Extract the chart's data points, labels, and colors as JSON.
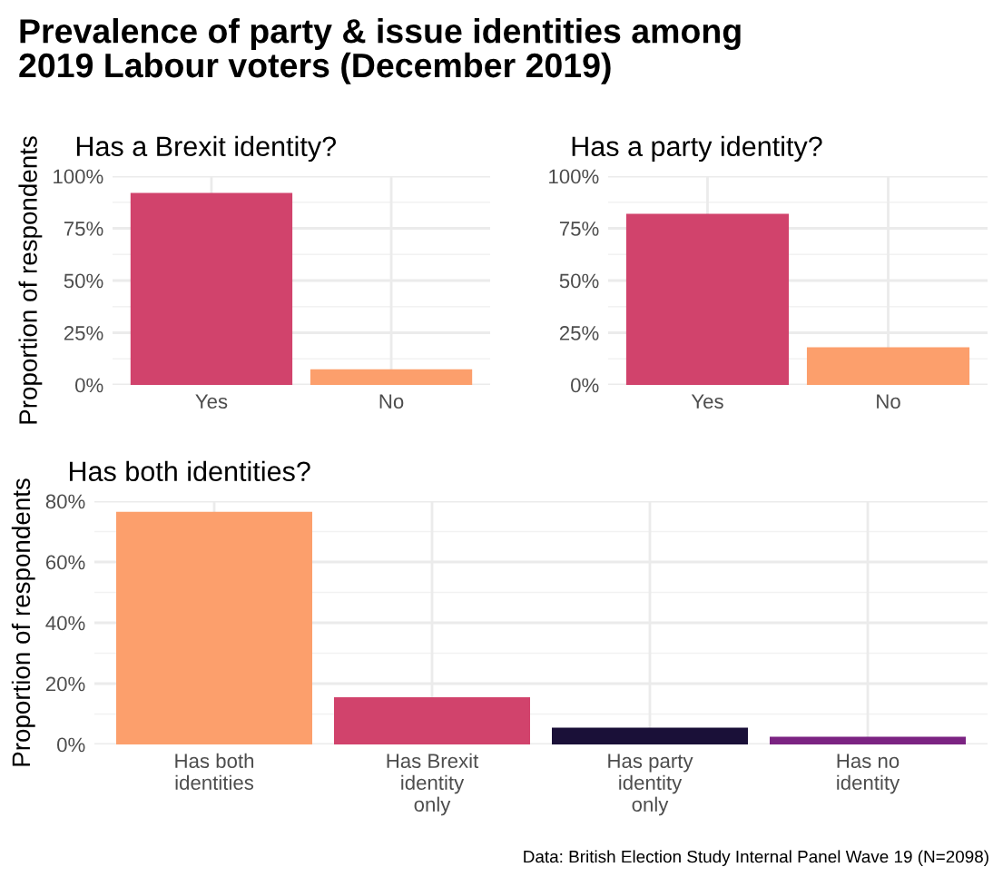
{
  "chart_data": [
    {
      "type": "bar",
      "title": "Prevalence of party & issue identities among\n2019 Labour voters (December 2019)",
      "subtitle": "Has a Brexit identity?",
      "ylabel": "Proportion of respondents",
      "categories": [
        "Yes",
        "No"
      ],
      "values": [
        92,
        7.5
      ],
      "colors": [
        "#d1436c",
        "#fc9f6c"
      ],
      "ylim": [
        0,
        100
      ],
      "yticks": [
        {
          "value": 0,
          "label": "0%"
        },
        {
          "value": 25,
          "label": "25%"
        },
        {
          "value": 50,
          "label": "50%"
        },
        {
          "value": 75,
          "label": "75%"
        },
        {
          "value": 100,
          "label": "100%"
        }
      ],
      "grid": true,
      "legend": false
    },
    {
      "type": "bar",
      "subtitle": "Has a party identity?",
      "categories": [
        "Yes",
        "No"
      ],
      "values": [
        82,
        18
      ],
      "colors": [
        "#d1436c",
        "#fc9f6c"
      ],
      "ylim": [
        0,
        100
      ],
      "yticks": [
        {
          "value": 0,
          "label": "0%"
        },
        {
          "value": 25,
          "label": "25%"
        },
        {
          "value": 50,
          "label": "50%"
        },
        {
          "value": 75,
          "label": "75%"
        },
        {
          "value": 100,
          "label": "100%"
        }
      ],
      "grid": true,
      "legend": false
    },
    {
      "type": "bar",
      "subtitle": "Has both identities?",
      "ylabel": "Proportion of respondents",
      "categories": [
        "Has both\nidentities",
        "Has Brexit\nidentity\nonly",
        "Has party\nidentity\nonly",
        "Has no\nidentity"
      ],
      "values": [
        76.5,
        15.5,
        5.5,
        2.5
      ],
      "colors": [
        "#fc9f6c",
        "#d1436c",
        "#1a1038",
        "#7b2382"
      ],
      "ylim": [
        0,
        80
      ],
      "yticks": [
        {
          "value": 0,
          "label": "0%"
        },
        {
          "value": 20,
          "label": "20%"
        },
        {
          "value": 40,
          "label": "40%"
        },
        {
          "value": 60,
          "label": "60%"
        },
        {
          "value": 80,
          "label": "80%"
        }
      ],
      "grid": true,
      "legend": false,
      "annotations": [
        "Data: British Election Study Internal Panel Wave 19 (N=2098)"
      ]
    }
  ]
}
